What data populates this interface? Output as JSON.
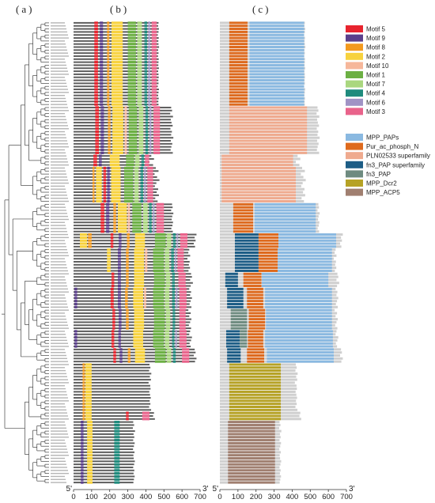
{
  "panel_labels": {
    "a": "(a)",
    "b": "(b)",
    "c": "(c)"
  },
  "axis": {
    "ticks": [
      0,
      100,
      200,
      300,
      400,
      500,
      600,
      700
    ],
    "range": [
      0,
      700
    ],
    "start_label": "5'",
    "end_label": "3'"
  },
  "motif_legend": [
    {
      "label": "Motif 5",
      "color": "#e8242e"
    },
    {
      "label": "Motif 9",
      "color": "#5b3f8c"
    },
    {
      "label": "Motif 8",
      "color": "#f39a1f"
    },
    {
      "label": "Motif 2",
      "color": "#f7d23e"
    },
    {
      "label": "Motif 10",
      "color": "#f6b79a"
    },
    {
      "label": "Motif 1",
      "color": "#6cb044"
    },
    {
      "label": "Motif 7",
      "color": "#aad77f"
    },
    {
      "label": "Motif 4",
      "color": "#1f8b7d"
    },
    {
      "label": "Motif 6",
      "color": "#a093c5"
    },
    {
      "label": "Motif 3",
      "color": "#e9638b"
    }
  ],
  "domain_legend": [
    {
      "label": "MPP_PAPs",
      "color": "#8ab9e1"
    },
    {
      "label": "Pur_ac_phosph_N",
      "color": "#de6a1e"
    },
    {
      "label": "PLN02533 superfamily",
      "color": "#efaa8e"
    },
    {
      "label": "fn3_PAP superfamily",
      "color": "#1d5d86"
    },
    {
      "label": "fn3_PAP",
      "color": "#6e8b80"
    },
    {
      "label": "MPP_Dcr2",
      "color": "#b6a225"
    },
    {
      "label": "MPP_ACP5",
      "color": "#a07f70"
    }
  ],
  "colors": {
    "protein_bar": "#5e5e5e",
    "domain_bar": "#cfcfcf",
    "tree": "#444444"
  },
  "groups": [
    {
      "lengths": [
        470,
        468,
        472,
        470,
        466,
        471,
        469,
        470,
        473,
        468,
        470,
        467,
        471,
        470,
        469,
        472,
        468,
        470,
        471,
        469,
        470,
        466,
        472,
        470,
        468,
        471,
        469,
        470
      ],
      "motifs": [
        [
          "Motif 5",
          115,
          135
        ],
        [
          "Motif 9",
          145,
          163
        ],
        [
          "Motif 8",
          185,
          198
        ],
        [
          "Motif 2",
          210,
          272
        ],
        [
          "Motif 1",
          300,
          345
        ],
        [
          "Motif 7",
          352,
          378
        ],
        [
          "Motif 4",
          392,
          407
        ],
        [
          "Motif 6",
          413,
          424
        ],
        [
          "Motif 3",
          432,
          460
        ]
      ],
      "domains": [
        [
          "Pur_ac_phosph_N",
          52,
          153
        ],
        [
          "MPP_PAPs",
          164,
          466
        ]
      ]
    },
    {
      "lengths": [
        540,
        545,
        535,
        550,
        538,
        542,
        548,
        536,
        544,
        540,
        552,
        538,
        546,
        541,
        537,
        549
      ],
      "motifs": [
        [
          "Motif 5",
          120,
          140
        ],
        [
          "Motif 9",
          150,
          168
        ],
        [
          "Motif 8",
          190,
          204
        ],
        [
          "Motif 2",
          215,
          275
        ],
        [
          "Motif 10",
          282,
          295
        ],
        [
          "Motif 1",
          305,
          352
        ],
        [
          "Motif 7",
          360,
          386
        ],
        [
          "Motif 4",
          398,
          412
        ],
        [
          "Motif 6",
          420,
          430
        ],
        [
          "Motif 3",
          442,
          478
        ]
      ],
      "domains": [
        [
          "PLN02533 superfamily",
          52,
          482
        ]
      ]
    },
    {
      "lengths": [
        430,
        445,
        420,
        440
      ],
      "motifs": [
        [
          "Motif 5",
          110,
          130
        ],
        [
          "Motif 9",
          140,
          156
        ],
        [
          "Motif 2",
          200,
          255
        ],
        [
          "Motif 1",
          290,
          335
        ],
        [
          "Motif 7",
          340,
          365
        ],
        [
          "Motif 4",
          375,
          390
        ],
        [
          "Motif 3",
          395,
          418
        ]
      ],
      "domains": [
        [
          "PLN02533 superfamily",
          10,
          405
        ]
      ]
    },
    {
      "lengths": [
        455,
        470,
        448,
        462,
        475,
        458,
        450,
        468,
        460,
        472,
        452,
        465
      ],
      "motifs": [
        [
          "Motif 8",
          105,
          116
        ],
        [
          "Motif 2",
          124,
          156
        ],
        [
          "Motif 5",
          165,
          180
        ],
        [
          "Motif 9",
          186,
          200
        ],
        [
          "Motif 2",
          208,
          260
        ],
        [
          "Motif 1",
          280,
          330
        ],
        [
          "Motif 7",
          336,
          360
        ],
        [
          "Motif 4",
          370,
          385
        ],
        [
          "Motif 6",
          390,
          400
        ],
        [
          "Motif 3",
          408,
          440
        ]
      ],
      "domains": [
        [
          "PLN02533 superfamily",
          10,
          420
        ]
      ]
    },
    {
      "lengths": [
        545,
        548,
        540,
        552,
        546,
        543,
        550,
        547,
        541,
        549
      ],
      "motifs": [
        [
          "Motif 5",
          150,
          170
        ],
        [
          "Motif 9",
          180,
          198
        ],
        [
          "Motif 8",
          220,
          235
        ],
        [
          "Motif 2",
          245,
          295
        ],
        [
          "Motif 10",
          300,
          312
        ],
        [
          "Motif 1",
          325,
          375
        ],
        [
          "Motif 7",
          385,
          410
        ],
        [
          "Motif 4",
          418,
          432
        ],
        [
          "Motif 6",
          438,
          448
        ],
        [
          "Motif 3",
          458,
          500
        ]
      ],
      "domains": [
        [
          "Pur_ac_phosph_N",
          74,
          184
        ],
        [
          "MPP_PAPs",
          192,
          530
        ]
      ]
    },
    {
      "lengths": [
        680,
        670,
        675,
        665,
        672
      ],
      "motifs": [
        [
          "Motif 2",
          35,
          75
        ],
        [
          "Motif 8",
          80,
          100
        ],
        [
          "Motif 5",
          205,
          220
        ],
        [
          "Motif 9",
          250,
          265
        ],
        [
          "Motif 8",
          295,
          310
        ],
        [
          "Motif 2",
          340,
          395
        ],
        [
          "Motif 1",
          450,
          510
        ],
        [
          "Motif 7",
          515,
          540
        ],
        [
          "Motif 4",
          550,
          565
        ],
        [
          "Motif 6",
          570,
          578
        ],
        [
          "Motif 3",
          590,
          630
        ]
      ],
      "domains": [
        [
          "fn3_PAP superfamily",
          83,
          214
        ],
        [
          "Pur_ac_phosph_N",
          214,
          324
        ],
        [
          "MPP_PAPs",
          324,
          643
        ]
      ]
    },
    {
      "lengths": [
        640,
        635,
        645,
        630,
        642,
        638,
        644,
        636
      ],
      "motifs": [
        [
          "Motif 2",
          185,
          205
        ],
        [
          "Motif 9",
          245,
          262
        ],
        [
          "Motif 8",
          290,
          305
        ],
        [
          "Motif 2",
          335,
          390
        ],
        [
          "Motif 10",
          395,
          408
        ],
        [
          "Motif 1",
          440,
          500
        ],
        [
          "Motif 7",
          505,
          530
        ],
        [
          "Motif 4",
          540,
          555
        ],
        [
          "Motif 6",
          560,
          568
        ],
        [
          "Motif 3",
          575,
          610
        ]
      ],
      "domains": [
        [
          "fn3_PAP superfamily",
          83,
          214
        ],
        [
          "Pur_ac_phosph_N",
          214,
          320
        ],
        [
          "MPP_PAPs",
          320,
          620
        ]
      ]
    },
    {
      "lengths": [
        650,
        655,
        645,
        660,
        648
      ],
      "motifs": [
        [
          "Motif 5",
          210,
          225
        ],
        [
          "Motif 9",
          245,
          262
        ],
        [
          "Motif 8",
          290,
          305
        ],
        [
          "Motif 2",
          335,
          390
        ],
        [
          "Motif 1",
          445,
          505
        ],
        [
          "Motif 7",
          510,
          535
        ],
        [
          "Motif 4",
          545,
          560
        ],
        [
          "Motif 3",
          580,
          620
        ]
      ],
      "domains": [
        [
          "fn3_PAP superfamily",
          30,
          100
        ],
        [
          "Pur_ac_phosph_N",
          130,
          230
        ],
        [
          "MPP_PAPs",
          232,
          600
        ]
      ]
    },
    {
      "lengths": [
        640,
        650,
        645,
        655,
        648,
        642,
        652
      ],
      "motifs": [
        [
          "Motif 9",
          5,
          20
        ],
        [
          "Motif 5",
          205,
          222
        ],
        [
          "Motif 9",
          245,
          262
        ],
        [
          "Motif 8",
          285,
          300
        ],
        [
          "Motif 2",
          330,
          385
        ],
        [
          "Motif 10",
          390,
          402
        ],
        [
          "Motif 1",
          440,
          500
        ],
        [
          "Motif 7",
          505,
          530
        ],
        [
          "Motif 4",
          545,
          560
        ],
        [
          "Motif 6",
          565,
          575
        ],
        [
          "Motif 3",
          585,
          625
        ]
      ],
      "domains": [
        [
          "fn3_PAP superfamily",
          40,
          130
        ],
        [
          "Pur_ac_phosph_N",
          150,
          240
        ],
        [
          "MPP_PAPs",
          250,
          620
        ]
      ]
    },
    {
      "lengths": [
        635,
        648,
        640,
        652,
        645,
        638,
        650
      ],
      "motifs": [
        [
          "Motif 5",
          215,
          230
        ],
        [
          "Motif 9",
          250,
          265
        ],
        [
          "Motif 8",
          290,
          305
        ],
        [
          "Motif 2",
          335,
          390
        ],
        [
          "Motif 1",
          445,
          505
        ],
        [
          "Motif 7",
          510,
          535
        ],
        [
          "Motif 4",
          548,
          562
        ],
        [
          "Motif 3",
          585,
          620
        ]
      ],
      "domains": [
        [
          "fn3_PAP",
          60,
          150
        ],
        [
          "Pur_ac_phosph_N",
          160,
          250
        ],
        [
          "MPP_PAPs",
          255,
          620
        ]
      ]
    },
    {
      "lengths": [
        645,
        640,
        655,
        650,
        642,
        648
      ],
      "motifs": [
        [
          "Motif 9",
          5,
          20
        ],
        [
          "Motif 5",
          210,
          225
        ],
        [
          "Motif 9",
          248,
          262
        ],
        [
          "Motif 2",
          330,
          385
        ],
        [
          "Motif 1",
          440,
          500
        ],
        [
          "Motif 7",
          505,
          530
        ],
        [
          "Motif 4",
          545,
          558
        ],
        [
          "Motif 6",
          563,
          572
        ],
        [
          "Motif 3",
          585,
          625
        ]
      ],
      "domains": [
        [
          "fn3_PAP superfamily",
          35,
          110
        ],
        [
          "fn3_PAP",
          110,
          150
        ],
        [
          "Pur_ac_phosph_N",
          155,
          240
        ],
        [
          "MPP_PAPs",
          250,
          625
        ]
      ]
    },
    {
      "lengths": [
        670,
        675,
        665,
        680,
        672
      ],
      "motifs": [
        [
          "Motif 5",
          220,
          235
        ],
        [
          "Motif 9",
          255,
          270
        ],
        [
          "Motif 8",
          300,
          315
        ],
        [
          "Motif 2",
          340,
          395
        ],
        [
          "Motif 1",
          450,
          510
        ],
        [
          "Motif 7",
          515,
          540
        ],
        [
          "Motif 4",
          550,
          565
        ],
        [
          "Motif 3",
          600,
          640
        ]
      ],
      "domains": [
        [
          "fn3_PAP superfamily",
          40,
          115
        ],
        [
          "Pur_ac_phosph_N",
          150,
          245
        ],
        [
          "MPP_PAPs",
          260,
          630
        ]
      ]
    },
    {
      "lengths": [
        420,
        425,
        418,
        430,
        422,
        428,
        415,
        424,
        426,
        419,
        423,
        427,
        421,
        425,
        418,
        429
      ],
      "motifs": [
        [
          "Motif 8",
          50,
          62
        ],
        [
          "Motif 2",
          65,
          100
        ]
      ],
      "domains": [
        [
          "MPP_Dcr2",
          52,
          337
        ]
      ]
    },
    {
      "lengths": [
        445,
        440,
        450
      ],
      "motifs": [
        [
          "Motif 8",
          50,
          62
        ],
        [
          "Motif 2",
          65,
          100
        ],
        [
          "Motif 5",
          290,
          305
        ],
        [
          "Motif 3",
          380,
          420
        ]
      ],
      "domains": [
        [
          "MPP_Dcr2",
          52,
          337
        ]
      ]
    },
    {
      "lengths": [
        330,
        335,
        328,
        340,
        332,
        336,
        330,
        338,
        334,
        329,
        337,
        331,
        333,
        339,
        335,
        330,
        336,
        332,
        338,
        334,
        331
      ],
      "motifs": [
        [
          "Motif 9",
          40,
          55
        ],
        [
          "Motif 2",
          75,
          105
        ],
        [
          "Motif 4",
          225,
          255
        ]
      ],
      "domains": [
        [
          "MPP_ACP5",
          45,
          305
        ]
      ]
    }
  ]
}
